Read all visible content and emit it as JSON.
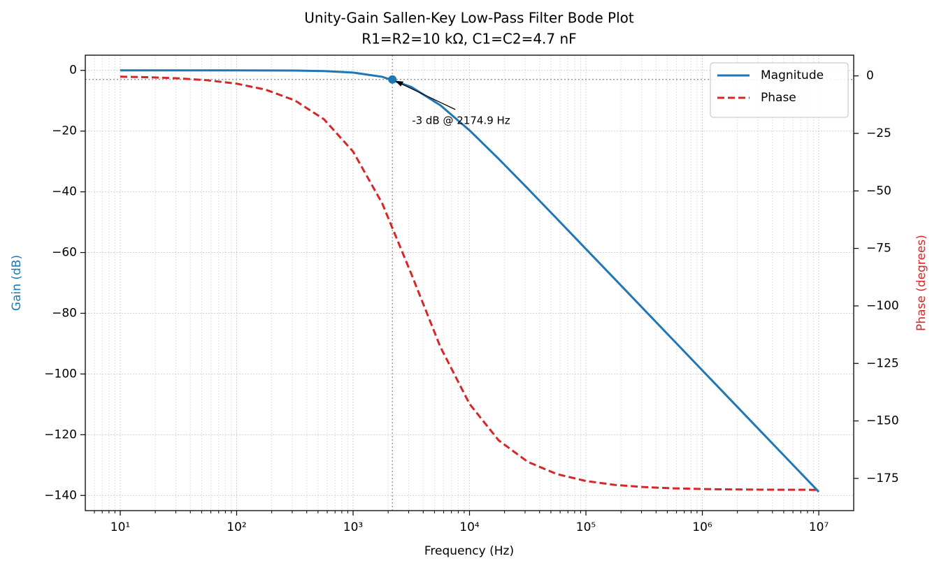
{
  "chart_data": {
    "type": "line",
    "title": "Unity-Gain Sallen-Key Low-Pass Filter Bode Plot",
    "subtitle": "R1=R2=10 kΩ, C1=C2=4.7 nF",
    "xlabel": "Frequency (Hz)",
    "ylabel": "Gain (dB)",
    "y2label": "Phase (degrees)",
    "xscale": "log",
    "grid": true,
    "legend": "upper right",
    "x": [
      10,
      17.78,
      31.62,
      56.23,
      100,
      177.8,
      316.2,
      562.3,
      1000,
      1778,
      3162,
      5623,
      10000,
      17783,
      31623,
      56234,
      100000,
      177828,
      316228,
      562341,
      1000000,
      1778279,
      3162278,
      5623413,
      10000000
    ],
    "series": [
      {
        "name": "Magnitude",
        "color": "#1f77b4",
        "style": "solid",
        "axis": "y",
        "values": [
          -0.0001,
          -0.0002,
          -0.0008,
          -0.0024,
          -0.0076,
          -0.024,
          -0.075,
          -0.236,
          -0.726,
          -2.115,
          -5.446,
          -11.5,
          -19.75,
          -29.12,
          -38.91,
          -48.84,
          -58.82,
          -68.81,
          -78.81,
          -88.81,
          -98.81,
          -108.81,
          -118.81,
          -128.81,
          -138.81
        ]
      },
      {
        "name": "Phase",
        "color": "#d62728",
        "style": "dashed",
        "axis": "y2",
        "values": [
          -0.34,
          -0.6,
          -1.07,
          -1.9,
          -3.38,
          -6.01,
          -10.67,
          -18.86,
          -32.9,
          -55.4,
          -86.08,
          -117.88,
          -142.58,
          -158.44,
          -167.78,
          -173.11,
          -176.12,
          -177.82,
          -178.77,
          -179.31,
          -179.61,
          -179.78,
          -179.88,
          -179.93,
          -179.96
        ]
      }
    ],
    "marker": {
      "x": 2174.9,
      "y": -3,
      "label": "-3 dB @ 2174.9 Hz"
    },
    "xlim": [
      5.01,
      19952623
    ],
    "xticks": [
      {
        "value": 10,
        "label": "10¹"
      },
      {
        "value": 100,
        "label": "10²"
      },
      {
        "value": 1000,
        "label": "10³"
      },
      {
        "value": 10000,
        "label": "10⁴"
      },
      {
        "value": 100000,
        "label": "10⁵"
      },
      {
        "value": 1000000,
        "label": "10⁶"
      },
      {
        "value": 10000000,
        "label": "10⁷"
      }
    ],
    "xminorticks": [
      6,
      7,
      8,
      9,
      20,
      30,
      40,
      50,
      60,
      70,
      80,
      90,
      200,
      300,
      400,
      500,
      600,
      700,
      800,
      900,
      2000,
      3000,
      4000,
      5000,
      6000,
      7000,
      8000,
      9000,
      20000,
      30000,
      40000,
      50000,
      60000,
      70000,
      80000,
      90000,
      200000,
      300000,
      400000,
      500000,
      600000,
      700000,
      800000,
      900000,
      2000000,
      3000000,
      4000000,
      5000000,
      6000000,
      7000000,
      8000000,
      9000000
    ],
    "ylim": [
      -145,
      5
    ],
    "yticks": [
      0,
      {
        "value": -20,
        "label": "−20"
      },
      {
        "value": -40,
        "label": "−40"
      },
      {
        "value": -60,
        "label": "−60"
      },
      {
        "value": -80,
        "label": "−80"
      },
      {
        "value": -100,
        "label": "−100"
      },
      {
        "value": -120,
        "label": "−120"
      },
      {
        "value": -140,
        "label": "−140"
      }
    ],
    "y2lim": [
      -189,
      9
    ],
    "y2ticks": [
      0,
      {
        "value": -25,
        "label": "−25"
      },
      {
        "value": -50,
        "label": "−50"
      },
      {
        "value": -75,
        "label": "−75"
      },
      {
        "value": -100,
        "label": "−100"
      },
      {
        "value": -125,
        "label": "−125"
      },
      {
        "value": -150,
        "label": "−150"
      },
      {
        "value": -175,
        "label": "−175"
      }
    ]
  }
}
